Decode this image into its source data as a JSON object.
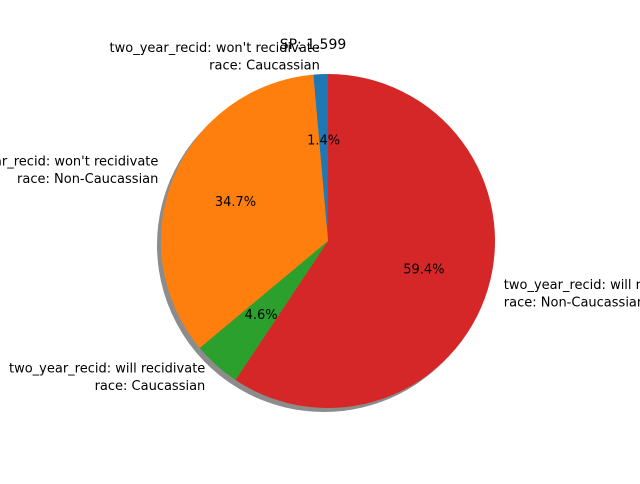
{
  "chart_data": {
    "type": "pie",
    "title": "SP: 1.599",
    "start_angle_deg": 90,
    "direction": "counterclockwise",
    "shadow": true,
    "slices": [
      {
        "label_lines": [
          "two_year_recid: won't recidivate",
          "race: Caucassian"
        ],
        "value": 1.4,
        "pct_label": "1.4%",
        "color": "#1f77b4"
      },
      {
        "label_lines": [
          "two_year_recid: won't recidivate",
          "race: Non-Caucassian"
        ],
        "value": 34.7,
        "pct_label": "34.7%",
        "color": "#ff7f0e"
      },
      {
        "label_lines": [
          "two_year_recid: will recidivate",
          "race: Caucassian"
        ],
        "value": 4.6,
        "pct_label": "4.6%",
        "color": "#2ca02c"
      },
      {
        "label_lines": [
          "two_year_recid: will recidivate",
          "race: Non-Caucassian"
        ],
        "value": 59.4,
        "pct_label": "59.4%",
        "color": "#d62728"
      }
    ]
  }
}
